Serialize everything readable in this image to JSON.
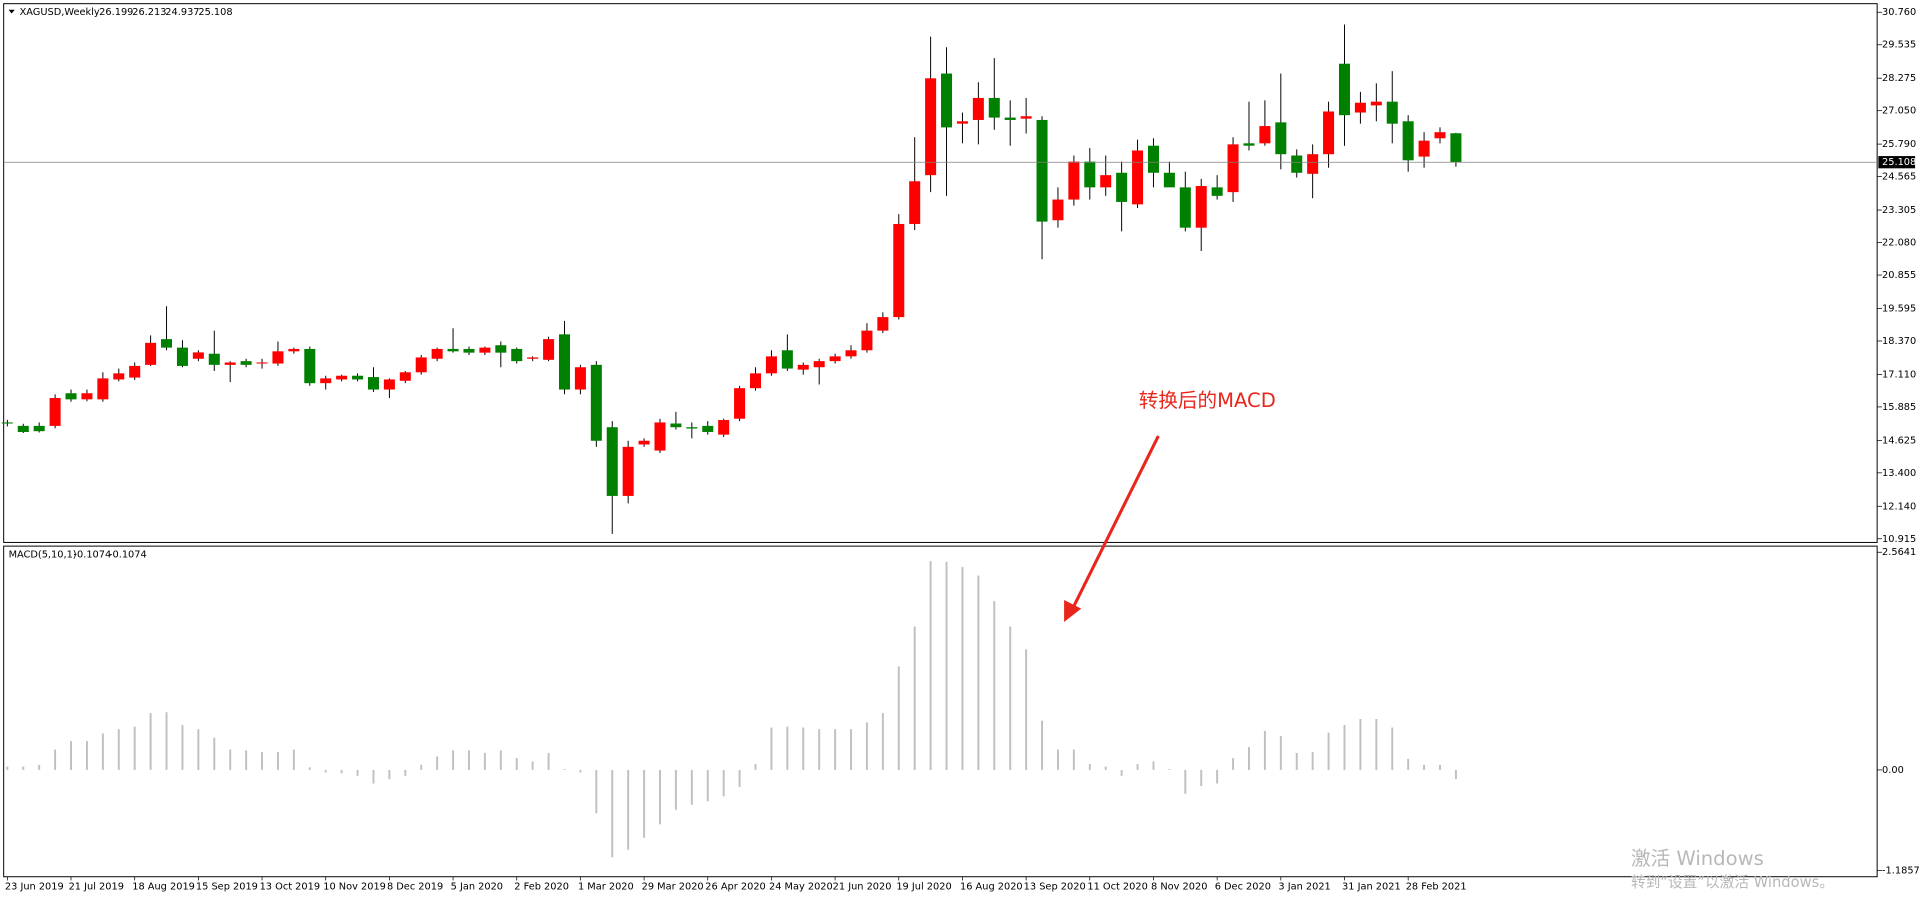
{
  "chart_data": [
    {
      "type": "candlestick",
      "title": "XAGUSD,Weekly",
      "up_color": "#ff0000",
      "down_color": "#008000",
      "wick_color": "#000000",
      "categories": [
        "23 Jun 2019",
        null,
        null,
        null,
        "21 Jul 2019",
        null,
        null,
        null,
        "18 Aug 2019",
        null,
        null,
        null,
        "15 Sep 2019",
        null,
        null,
        null,
        "13 Oct 2019",
        null,
        null,
        null,
        "10 Nov 2019",
        null,
        null,
        null,
        "8 Dec 2019",
        null,
        null,
        null,
        "5 Jan 2020",
        null,
        null,
        null,
        "2 Feb 2020",
        null,
        null,
        null,
        "1 Mar 2020",
        null,
        null,
        null,
        "29 Mar 2020",
        null,
        null,
        null,
        "26 Apr 2020",
        null,
        null,
        null,
        "24 May 2020",
        null,
        null,
        null,
        "21 Jun 2020",
        null,
        null,
        null,
        "19 Jul 2020",
        null,
        null,
        null,
        "16 Aug 2020",
        null,
        null,
        null,
        "13 Sep 2020",
        null,
        null,
        null,
        "11 Oct 2020",
        null,
        null,
        null,
        "8 Nov 2020",
        null,
        null,
        null,
        "6 Dec 2020",
        null,
        null,
        null,
        "3 Jan 2021",
        null,
        null,
        null,
        "31 Jan 2021",
        null,
        null,
        null,
        "28 Feb 2021",
        null,
        null,
        null
      ],
      "open": [
        15.3,
        15.17,
        15.17,
        15.17,
        16.4,
        16.17,
        16.17,
        16.92,
        16.99,
        17.47,
        18.44,
        18.12,
        17.7,
        17.89,
        17.47,
        17.61,
        17.52,
        17.52,
        17.98,
        18.07,
        16.78,
        16.92,
        17.06,
        17.01,
        16.54,
        16.87,
        17.19,
        17.7,
        18.07,
        18.07,
        17.93,
        18.21,
        18.07,
        17.7,
        17.66,
        18.62,
        16.54,
        17.47,
        15.12,
        12.53,
        14.47,
        14.24,
        15.26,
        15.12,
        15.17,
        14.84,
        15.44,
        16.59,
        17.15,
        18.02,
        17.29,
        17.38,
        17.61,
        17.79,
        18.02,
        18.76,
        19.27,
        22.78,
        24.62,
        28.45,
        26.56,
        26.7,
        27.53,
        26.79,
        26.75,
        26.7,
        22.92,
        23.7,
        25.13,
        24.16,
        24.71,
        23.52,
        25.73,
        24.71,
        24.16,
        22.64,
        24.16,
        23.98,
        25.82,
        25.82,
        26.61,
        25.36,
        24.67,
        25.41,
        28.82,
        26.98,
        27.25,
        27.39,
        26.65,
        25.32,
        26.01,
        26.199
      ],
      "high": [
        15.4,
        15.25,
        15.3,
        16.36,
        16.54,
        16.54,
        17.19,
        17.33,
        17.56,
        18.58,
        19.68,
        18.4,
        18.02,
        18.76,
        17.61,
        17.7,
        17.7,
        18.35,
        18.12,
        18.16,
        17.06,
        17.1,
        17.15,
        17.38,
        16.96,
        17.24,
        17.84,
        18.12,
        18.85,
        18.16,
        18.16,
        18.35,
        18.12,
        17.79,
        18.53,
        19.13,
        17.47,
        17.61,
        15.35,
        14.61,
        14.7,
        15.44,
        15.7,
        15.3,
        15.35,
        15.44,
        16.68,
        17.38,
        18.02,
        18.62,
        17.56,
        17.7,
        17.89,
        18.21,
        19.04,
        19.45,
        23.15,
        26.05,
        29.84,
        29.44,
        26.98,
        28.12,
        29.03,
        27.44,
        27.53,
        26.84,
        24.16,
        25.36,
        25.64,
        25.36,
        25.13,
        25.96,
        26.01,
        25.13,
        24.75,
        24.48,
        24.62,
        26.05,
        27.39,
        27.44,
        28.45,
        25.59,
        25.78,
        27.39,
        30.3,
        27.76,
        28.08,
        28.54,
        26.88,
        26.24,
        26.42,
        26.213
      ],
      "low": [
        15.15,
        14.9,
        14.92,
        15.08,
        16.08,
        16.1,
        16.08,
        16.85,
        16.9,
        17.43,
        18.02,
        17.38,
        17.61,
        17.24,
        16.82,
        17.38,
        17.33,
        17.43,
        17.89,
        16.68,
        16.54,
        16.85,
        16.85,
        16.45,
        16.22,
        16.78,
        17.1,
        17.61,
        17.93,
        17.84,
        17.84,
        17.38,
        17.52,
        17.61,
        17.61,
        16.36,
        16.36,
        14.38,
        11.1,
        12.25,
        14.38,
        14.15,
        15.03,
        14.7,
        14.84,
        14.75,
        15.35,
        16.5,
        17.06,
        17.24,
        17.1,
        16.73,
        17.52,
        17.7,
        17.93,
        18.67,
        19.18,
        22.55,
        23.98,
        23.84,
        25.82,
        25.78,
        26.33,
        25.73,
        26.19,
        21.45,
        22.64,
        23.47,
        23.7,
        23.84,
        22.5,
        23.38,
        24.16,
        24.21,
        22.5,
        21.76,
        23.7,
        23.61,
        25.55,
        25.73,
        24.84,
        24.53,
        23.75,
        24.9,
        25.73,
        26.56,
        26.65,
        25.82,
        24.75,
        24.9,
        25.82,
        24.937
      ],
      "close": [
        15.26,
        14.94,
        14.97,
        16.22,
        16.17,
        16.4,
        16.96,
        17.15,
        17.43,
        18.3,
        18.12,
        17.43,
        17.94,
        17.47,
        17.56,
        17.47,
        17.56,
        17.98,
        18.07,
        16.78,
        16.96,
        17.06,
        16.92,
        16.54,
        16.92,
        17.19,
        17.75,
        18.07,
        17.98,
        17.93,
        18.12,
        17.93,
        17.61,
        17.75,
        18.44,
        16.54,
        17.38,
        14.61,
        12.53,
        14.38,
        14.61,
        15.3,
        15.12,
        15.07,
        14.94,
        15.39,
        16.59,
        17.15,
        17.79,
        17.33,
        17.47,
        17.61,
        17.79,
        18.02,
        18.76,
        19.27,
        22.78,
        24.39,
        28.27,
        26.42,
        26.65,
        27.53,
        26.79,
        26.7,
        26.84,
        22.87,
        23.7,
        25.13,
        24.16,
        24.62,
        23.61,
        25.55,
        24.71,
        24.16,
        22.64,
        24.21,
        23.84,
        25.78,
        25.73,
        26.47,
        25.41,
        24.71,
        25.41,
        27.02,
        26.88,
        27.35,
        27.39,
        26.56,
        25.18,
        25.92,
        26.24,
        25.108
      ],
      "ylim": [
        10.915,
        30.76
      ],
      "yticks": [
        {
          "value": 30.76,
          "label": "30.760"
        },
        29.535,
        28.275,
        {
          "value": 27.05,
          "label": "27.050"
        },
        {
          "value": 25.79,
          "label": "25.790"
        },
        24.565,
        23.305,
        {
          "value": 22.08,
          "label": "22.080"
        },
        20.855,
        19.595,
        {
          "value": 18.37,
          "label": "18.370"
        },
        {
          "value": 17.11,
          "label": "17.110"
        },
        15.885,
        14.625,
        {
          "value": 13.4,
          "label": "13.400"
        },
        {
          "value": 12.14,
          "label": "12.140"
        },
        10.915
      ]
    },
    {
      "type": "bar",
      "title": "MACD(5,10,1)",
      "color": "#c0c0c0",
      "annotation": "转换后的MACD",
      "annotation_color": "#e8261c",
      "values": [
        0.04,
        0.04,
        0.06,
        0.24,
        0.34,
        0.34,
        0.43,
        0.48,
        0.51,
        0.67,
        0.68,
        0.53,
        0.48,
        0.38,
        0.24,
        0.23,
        0.21,
        0.21,
        0.24,
        0.03,
        -0.03,
        -0.04,
        -0.07,
        -0.16,
        -0.11,
        -0.07,
        0.06,
        0.16,
        0.23,
        0.23,
        0.2,
        0.23,
        0.14,
        0.1,
        0.2,
        0.01,
        -0.03,
        -0.51,
        -1.03,
        -0.94,
        -0.8,
        -0.64,
        -0.47,
        -0.41,
        -0.37,
        -0.31,
        -0.2,
        0.07,
        0.5,
        0.51,
        0.5,
        0.48,
        0.48,
        0.48,
        0.56,
        0.67,
        1.22,
        1.69,
        2.46,
        2.45,
        2.39,
        2.29,
        1.99,
        1.69,
        1.42,
        0.58,
        0.24,
        0.24,
        0.07,
        0.04,
        -0.07,
        0.07,
        0.1,
        0.01,
        -0.28,
        -0.19,
        -0.16,
        0.14,
        0.27,
        0.46,
        0.4,
        0.2,
        0.21,
        0.44,
        0.53,
        0.6,
        0.6,
        0.5,
        0.13,
        0.06,
        0.06,
        -0.1074
      ],
      "ylim": [
        -1.1857,
        2.5641
      ],
      "yticks": [
        2.5641,
        {
          "value": 0,
          "label": "0.00"
        },
        -1.1857
      ]
    }
  ],
  "watermark": {
    "line1": "激活 Windows",
    "line2": "转到“设置”以激活 Windows。"
  }
}
